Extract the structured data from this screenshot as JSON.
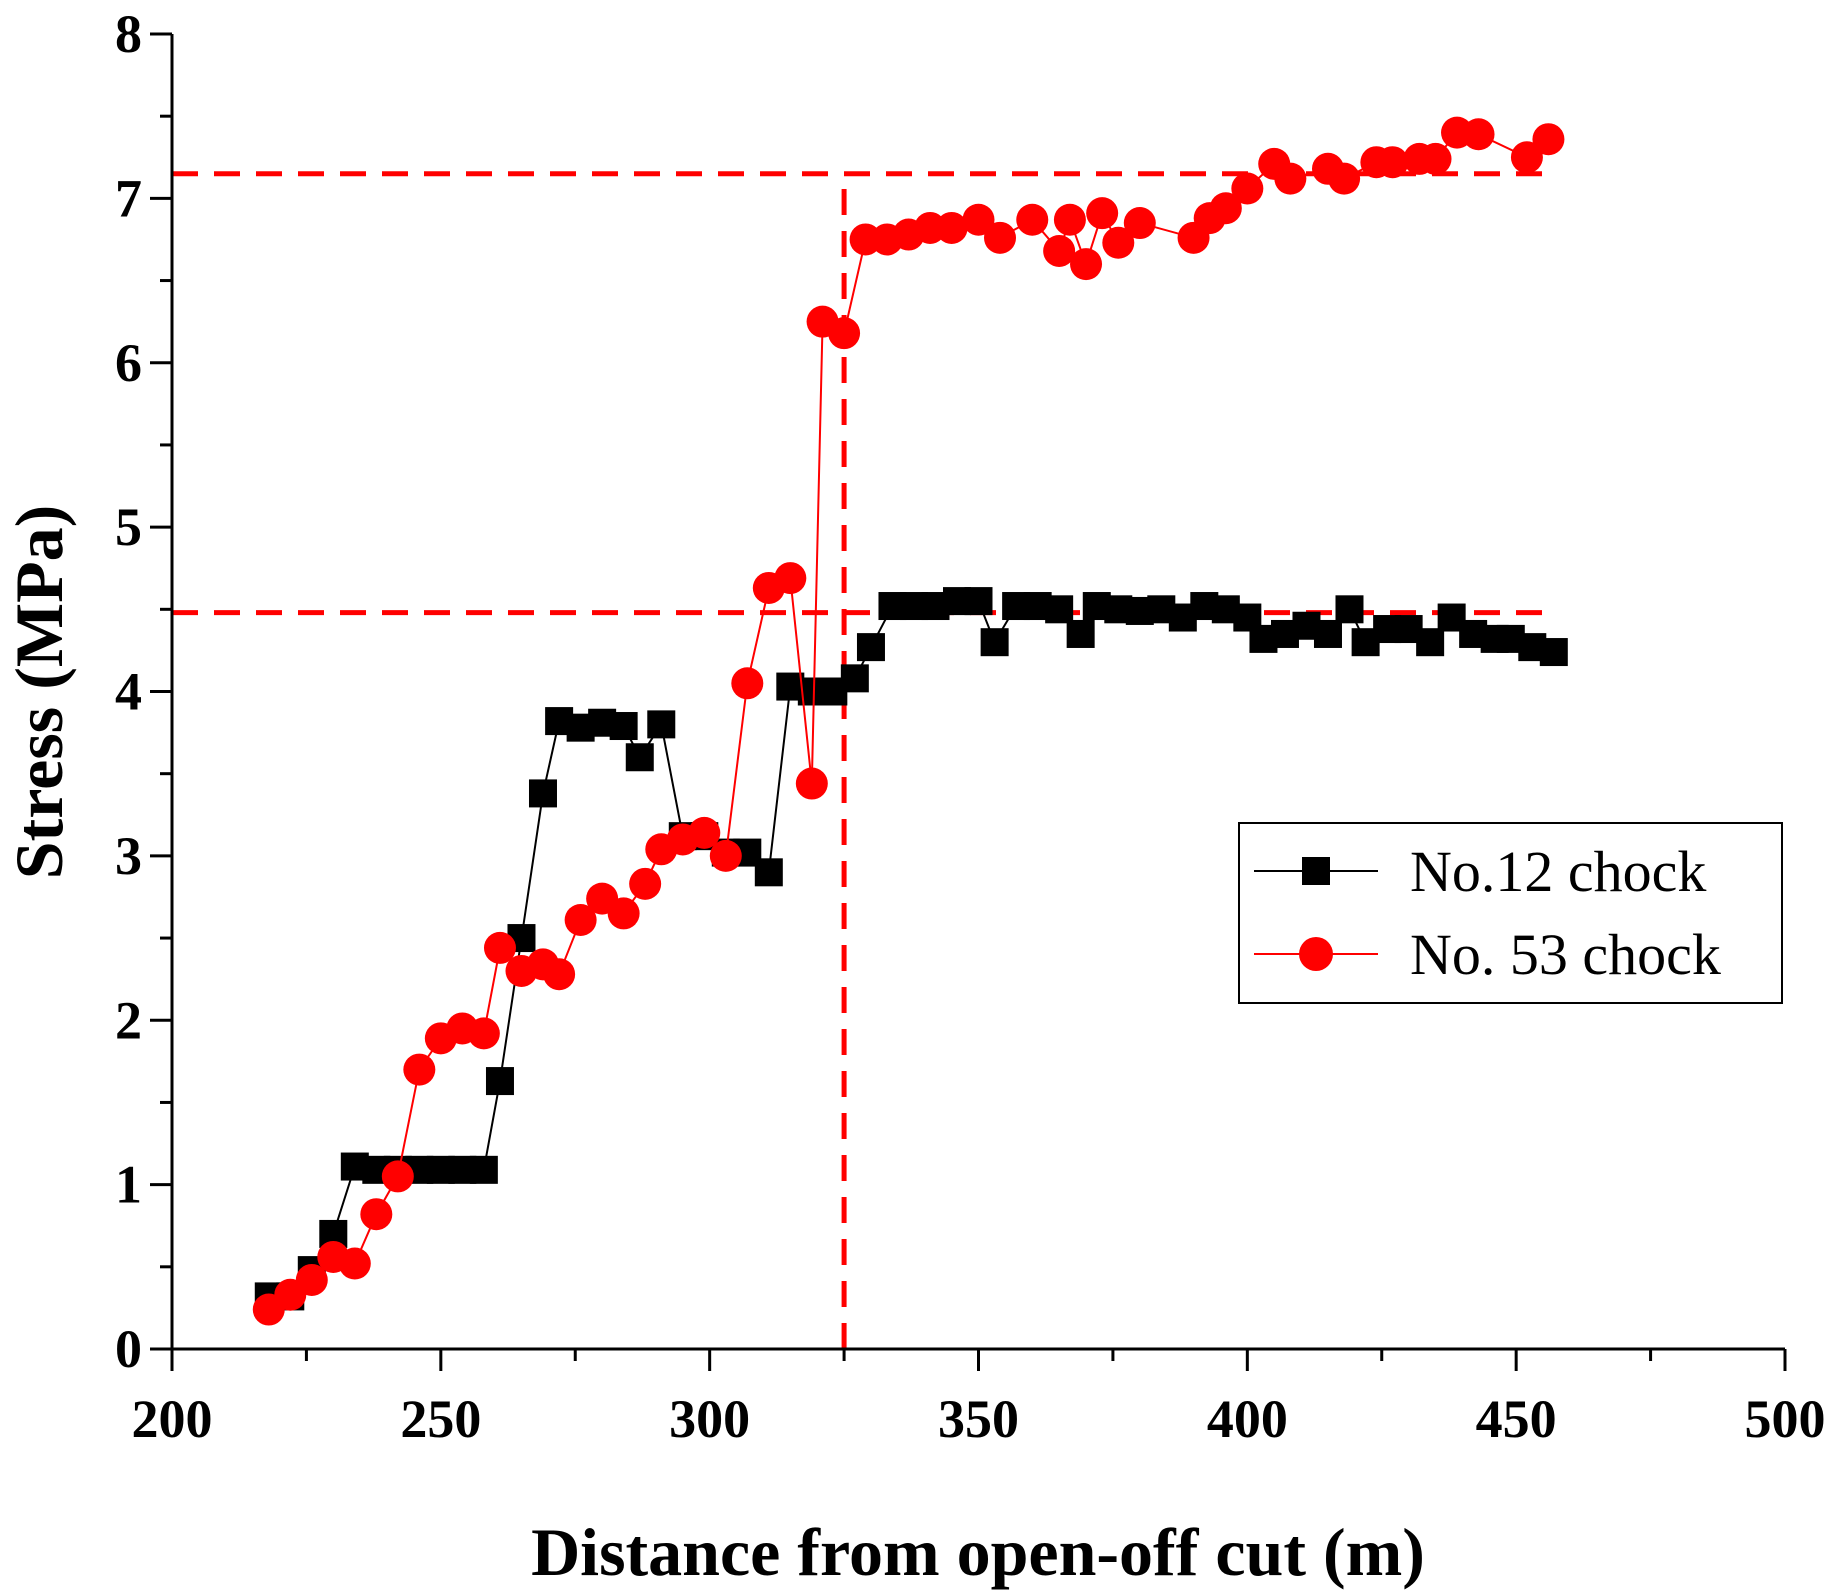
{
  "chart_data": {
    "type": "line",
    "title": "",
    "xlabel": "Distance from open-off cut (m)",
    "ylabel": "Stress (MPa)",
    "xlim": [
      200,
      500
    ],
    "ylim": [
      0,
      8
    ],
    "xticks": [
      200,
      250,
      300,
      350,
      400,
      450,
      500
    ],
    "xtick_labels": [
      "200",
      "250",
      "300",
      "350",
      "400",
      "450",
      "500"
    ],
    "yticks": [
      0,
      1,
      2,
      3,
      4,
      5,
      6,
      7,
      8
    ],
    "ytick_labels": [
      "0",
      "1",
      "2",
      "3",
      "4",
      "5",
      "6",
      "7",
      "8"
    ],
    "legend_position": "right-middle",
    "series": [
      {
        "name": "No.12 chock",
        "color": "#000000",
        "marker": "square",
        "x": [
          218,
          222,
          226,
          230,
          234,
          238,
          242,
          246,
          250,
          254,
          258,
          261,
          265,
          269,
          272,
          276,
          280,
          284,
          287,
          291,
          295,
          299,
          303,
          307,
          311,
          315,
          319,
          323,
          327,
          330,
          334,
          338,
          342,
          346,
          350,
          353,
          357,
          361,
          365,
          369,
          372,
          376,
          380,
          384,
          388,
          392,
          396,
          400,
          403,
          407,
          411,
          415,
          419,
          422,
          426,
          430,
          434,
          438,
          442,
          446,
          449,
          453,
          457
        ],
        "y": [
          0.32,
          0.32,
          0.48,
          0.7,
          1.11,
          1.09,
          1.09,
          1.09,
          1.09,
          1.09,
          1.09,
          1.63,
          2.5,
          3.38,
          3.82,
          3.78,
          3.81,
          3.79,
          3.6,
          3.8,
          3.12,
          3.12,
          3.02,
          3.02,
          2.9,
          4.03,
          4.0,
          4.0,
          4.08,
          4.27,
          4.52,
          4.52,
          4.52,
          4.55,
          4.55,
          4.3,
          4.52,
          4.52,
          4.5,
          4.35,
          4.52,
          4.5,
          4.49,
          4.5,
          4.45,
          4.52,
          4.5,
          4.45,
          4.32,
          4.35,
          4.4,
          4.35,
          4.5,
          4.3,
          4.38,
          4.38,
          4.3,
          4.45,
          4.35,
          4.32,
          4.32,
          4.27,
          4.24
        ]
      },
      {
        "name": "No. 53 chock",
        "color": "#ff0000",
        "marker": "circle",
        "x": [
          218,
          222,
          226,
          230,
          234,
          238,
          242,
          246,
          250,
          254,
          258,
          261,
          265,
          269,
          272,
          276,
          280,
          284,
          288,
          291,
          295,
          299,
          303,
          307,
          311,
          315,
          319,
          321,
          325,
          329,
          333,
          337,
          341,
          345,
          350,
          354,
          360,
          365,
          367,
          370,
          373,
          376,
          380,
          390,
          393,
          396,
          400,
          405,
          408,
          415,
          418,
          424,
          427,
          432,
          435,
          439,
          443,
          452,
          456
        ],
        "y": [
          0.24,
          0.33,
          0.42,
          0.56,
          0.52,
          0.82,
          1.05,
          1.7,
          1.89,
          1.95,
          1.92,
          2.44,
          2.3,
          2.34,
          2.28,
          2.61,
          2.74,
          2.65,
          2.83,
          3.04,
          3.1,
          3.14,
          3.0,
          4.05,
          4.63,
          4.69,
          3.44,
          6.25,
          6.18,
          6.75,
          6.75,
          6.78,
          6.82,
          6.82,
          6.87,
          6.76,
          6.87,
          6.68,
          6.87,
          6.6,
          6.91,
          6.73,
          6.85,
          6.76,
          6.88,
          6.94,
          7.06,
          7.21,
          7.12,
          7.18,
          7.12,
          7.22,
          7.22,
          7.24,
          7.24,
          7.4,
          7.39,
          7.25,
          7.36
        ]
      }
    ],
    "reference_lines": [
      {
        "orientation": "horizontal",
        "value": 7.15,
        "from": 200,
        "to": 455,
        "color": "#ff0000",
        "style": "dashed"
      },
      {
        "orientation": "horizontal",
        "value": 4.48,
        "from": 200,
        "to": 455,
        "color": "#ff0000",
        "style": "dashed"
      },
      {
        "orientation": "vertical",
        "value": 325,
        "from": 0,
        "to": 7.15,
        "color": "#ff0000",
        "style": "dashed"
      }
    ]
  }
}
